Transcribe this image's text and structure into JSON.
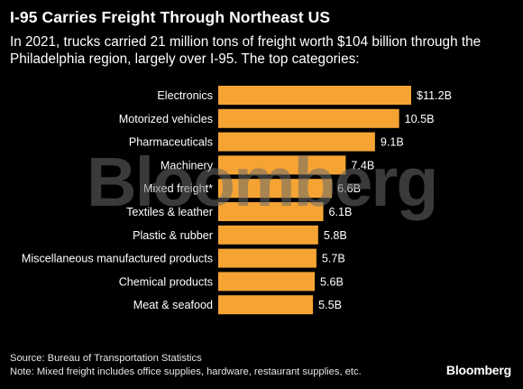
{
  "header": {
    "title": "I-95 Carries Freight Through Northeast US",
    "subtitle": "In 2021, trucks carried 21 million tons of freight worth $104 billion through the Philadelphia region, largely over I-95. The top categories:"
  },
  "watermark": "Bloomberg",
  "footer": {
    "source": "Source: Bureau of Transportation Statistics",
    "note": "Note: Mixed freight includes office supplies, hardware, restaurant supplies, etc.",
    "brand": "Bloomberg"
  },
  "colors": {
    "bar": "#F5A433",
    "background": "#000000",
    "text": "#FFFFFF"
  },
  "chart_data": {
    "type": "bar",
    "orientation": "horizontal",
    "title": "I-95 Carries Freight Through Northeast US",
    "categories": [
      "Electronics",
      "Motorized vehicles",
      "Pharmaceuticals",
      "Machinery",
      "Mixed freight*",
      "Textiles & leather",
      "Plastic & rubber",
      "Miscellaneous manufactured products",
      "Chemical products",
      "Meat & seafood"
    ],
    "values": [
      11.2,
      10.5,
      9.1,
      7.4,
      6.6,
      6.1,
      5.8,
      5.7,
      5.6,
      5.5
    ],
    "value_labels": [
      "$11.2B",
      "10.5B",
      "9.1B",
      "7.4B",
      "6.6B",
      "6.1B",
      "5.8B",
      "5.7B",
      "5.6B",
      "5.5B"
    ],
    "xlim": [
      0,
      11.2
    ],
    "grid": false,
    "legend": "none"
  }
}
